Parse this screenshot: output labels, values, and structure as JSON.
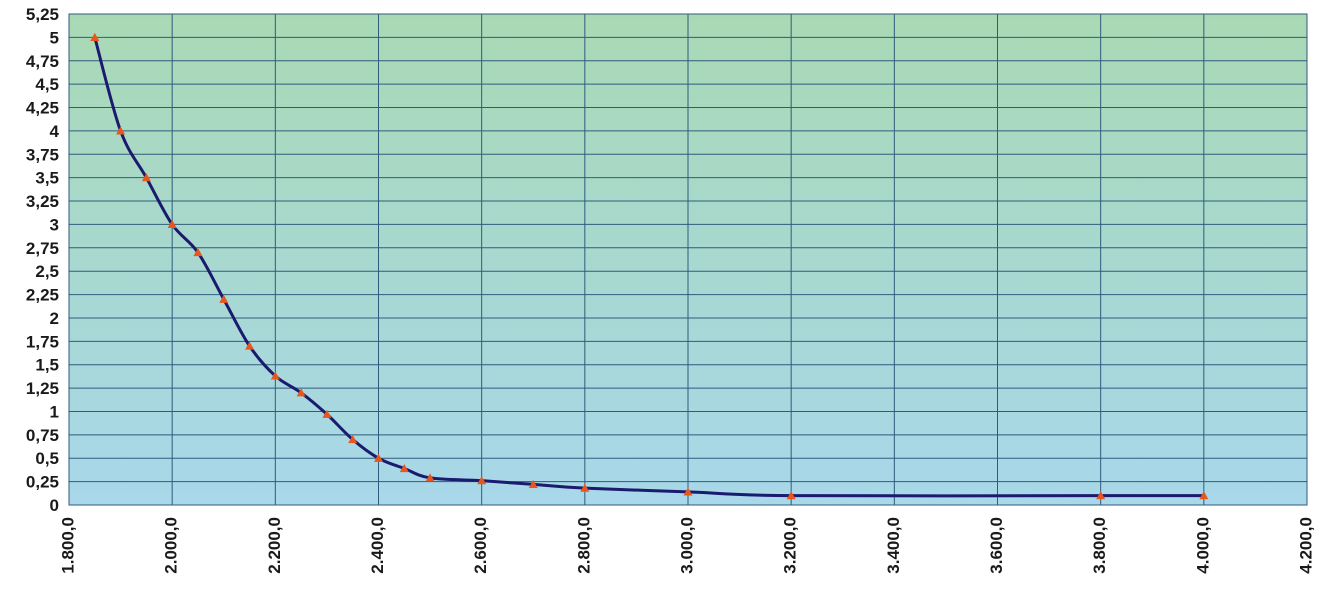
{
  "chart_data": {
    "type": "line",
    "title": "",
    "xlabel": "",
    "ylabel": "",
    "xlim": [
      1800,
      4200
    ],
    "ylim": [
      0,
      5.25
    ],
    "grid": true,
    "legend": "none",
    "x_ticks": [
      {
        "value": 1800,
        "label": "1.800,0"
      },
      {
        "value": 2000,
        "label": "2.000,0"
      },
      {
        "value": 2200,
        "label": "2.200,0"
      },
      {
        "value": 2400,
        "label": "2.400,0"
      },
      {
        "value": 2600,
        "label": "2.600,0"
      },
      {
        "value": 2800,
        "label": "2.800,0"
      },
      {
        "value": 3000,
        "label": "3.000,0"
      },
      {
        "value": 3200,
        "label": "3.200,0"
      },
      {
        "value": 3400,
        "label": "3.400,0"
      },
      {
        "value": 3600,
        "label": "3.600,0"
      },
      {
        "value": 3800,
        "label": "3.800,0"
      },
      {
        "value": 4000,
        "label": "4.000,0"
      },
      {
        "value": 4200,
        "label": "4.200,0"
      }
    ],
    "y_ticks": [
      {
        "value": 0,
        "label": "0"
      },
      {
        "value": 0.25,
        "label": "0,25"
      },
      {
        "value": 0.5,
        "label": "0,5"
      },
      {
        "value": 0.75,
        "label": "0,75"
      },
      {
        "value": 1,
        "label": "1"
      },
      {
        "value": 1.25,
        "label": "1,25"
      },
      {
        "value": 1.5,
        "label": "1,5"
      },
      {
        "value": 1.75,
        "label": "1,75"
      },
      {
        "value": 2,
        "label": "2"
      },
      {
        "value": 2.25,
        "label": "2,25"
      },
      {
        "value": 2.5,
        "label": "2,5"
      },
      {
        "value": 2.75,
        "label": "2,75"
      },
      {
        "value": 3,
        "label": "3"
      },
      {
        "value": 3.25,
        "label": "3,25"
      },
      {
        "value": 3.5,
        "label": "3,5"
      },
      {
        "value": 3.75,
        "label": "3,75"
      },
      {
        "value": 4,
        "label": "4"
      },
      {
        "value": 4.25,
        "label": "4,25"
      },
      {
        "value": 4.5,
        "label": "4,5"
      },
      {
        "value": 4.75,
        "label": "4,75"
      },
      {
        "value": 5,
        "label": "5"
      },
      {
        "value": 5.25,
        "label": "5,25"
      }
    ],
    "series": [
      {
        "x": [
          1850,
          1900,
          1950,
          2000,
          2050,
          2100,
          2150,
          2200,
          2250,
          2300,
          2350,
          2400,
          2450,
          2500,
          2600,
          2700,
          2800,
          3000,
          3200,
          3800,
          4000
        ],
        "y": [
          5.0,
          4.0,
          3.5,
          3.0,
          2.7,
          2.2,
          1.7,
          1.38,
          1.2,
          0.97,
          0.7,
          0.5,
          0.39,
          0.29,
          0.26,
          0.22,
          0.18,
          0.14,
          0.1,
          0.1,
          0.1
        ]
      }
    ],
    "colors": {
      "line": "#1a1a6e",
      "marker": "#e8561e",
      "plot_top": "#a9d9b4",
      "plot_bottom": "#a8d8ea",
      "grid": "#2f5b7c"
    }
  }
}
